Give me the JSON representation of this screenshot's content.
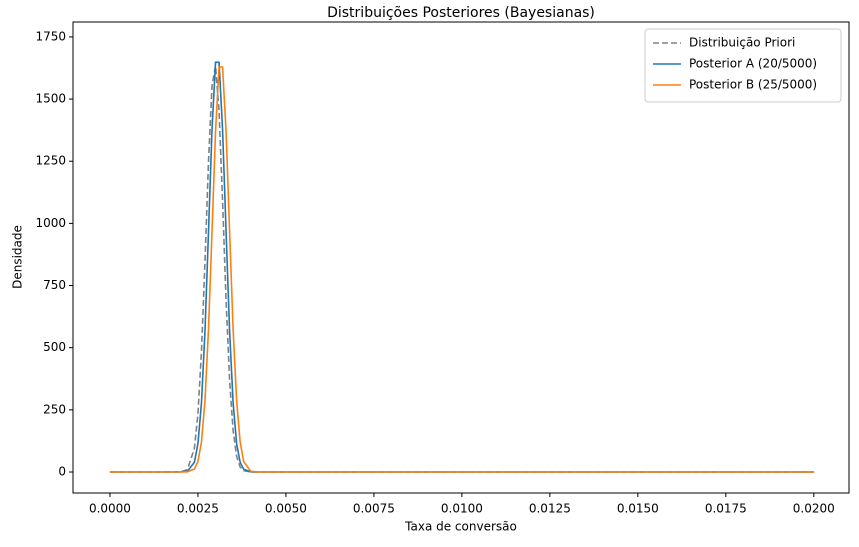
{
  "chart_data": {
    "type": "line",
    "title": "Distribuições Posteriores (Bayesianas)",
    "x_label": "Taxa de conversão",
    "y_label": "Densidade",
    "x": [
      0,
      0.0015,
      0.002,
      0.0022,
      0.0024,
      0.0025,
      0.0026,
      0.0027,
      0.0028,
      0.0029,
      0.003,
      0.0031,
      0.0032,
      0.0033,
      0.0034,
      0.0035,
      0.0036,
      0.0037,
      0.0038,
      0.004,
      0.0042,
      0.0045,
      0.005,
      0.01,
      0.015,
      0.02
    ],
    "series": [
      {
        "name": "Distribuição Priori",
        "color": "#808080",
        "linestyle": "dashed",
        "values": [
          0,
          0,
          0.5,
          9.5,
          95,
          233,
          483,
          844,
          1247,
          1554,
          1634,
          1452,
          1089,
          689,
          368,
          166,
          63,
          20,
          5.5,
          0.2,
          0,
          0,
          0,
          0,
          0,
          0
        ]
      },
      {
        "name": "Posterior A (20/5000)",
        "color": "#1f77b4",
        "linestyle": "solid",
        "values": [
          0,
          0,
          0.1,
          2.7,
          39,
          113,
          277,
          565,
          965,
          1378,
          1648,
          1648,
          1378,
          965,
          565,
          277,
          113,
          39,
          11,
          0.5,
          0,
          0,
          0,
          0,
          0,
          0
        ]
      },
      {
        "name": "Posterior B (25/5000)",
        "color": "#ff7f0e",
        "linestyle": "solid",
        "values": [
          0,
          0,
          0,
          0.6,
          12,
          42,
          120,
          286,
          573,
          966,
          1369,
          1629,
          1629,
          1369,
          966,
          573,
          286,
          120,
          42,
          3,
          0.1,
          0,
          0,
          0,
          0,
          0
        ]
      }
    ],
    "xlim": [
      -0.00105,
      0.021
    ],
    "ylim": [
      -84.5,
      1810
    ],
    "xticks": [
      {
        "value": 0,
        "label": "0.0000"
      },
      {
        "value": 0.0025,
        "label": "0.0025"
      },
      {
        "value": 0.005,
        "label": "0.0050"
      },
      {
        "value": 0.0075,
        "label": "0.0075"
      },
      {
        "value": 0.01,
        "label": "0.0100"
      },
      {
        "value": 0.0125,
        "label": "0.0125"
      },
      {
        "value": 0.015,
        "label": "0.0150"
      },
      {
        "value": 0.0175,
        "label": "0.0175"
      },
      {
        "value": 0.02,
        "label": "0.0200"
      }
    ],
    "yticks": [
      0,
      250,
      500,
      750,
      1000,
      1250,
      1500,
      1750
    ],
    "grid": false,
    "legend": "upper right"
  }
}
